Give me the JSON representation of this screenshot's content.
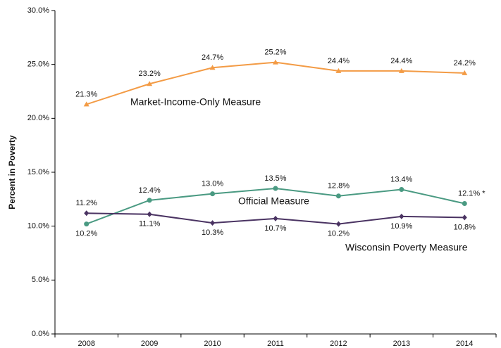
{
  "chart_data": {
    "type": "line",
    "y_label": "Percent in Poverty",
    "categories": [
      "2008",
      "2009",
      "2010",
      "2011",
      "2012",
      "2013",
      "2014"
    ],
    "series": [
      {
        "name": "Market-Income-Only Measure",
        "color": "#f39b45",
        "marker": "triangle",
        "values": [
          21.3,
          23.2,
          24.7,
          25.2,
          24.4,
          24.4,
          24.2
        ],
        "value_labels": [
          "21.3%",
          "23.2%",
          "24.7%",
          "25.2%",
          "24.4%",
          "24.4%",
          "24.2%"
        ]
      },
      {
        "name": "Official Measure",
        "color": "#4a9a82",
        "marker": "circle",
        "values": [
          10.2,
          12.4,
          13.0,
          13.5,
          12.8,
          13.4,
          12.1
        ],
        "value_labels": [
          "10.2%",
          "12.4%",
          "13.0%",
          "13.5%",
          "12.8%",
          "13.4%",
          "12.1% *"
        ]
      },
      {
        "name": "Wisconsin Poverty Measure",
        "color": "#4a3362",
        "marker": "diamond",
        "values": [
          11.2,
          11.1,
          10.3,
          10.7,
          10.2,
          10.9,
          10.8
        ],
        "value_labels": [
          "11.2%",
          "11.1%",
          "10.3%",
          "10.7%",
          "10.2%",
          "10.9%",
          "10.8%"
        ]
      }
    ],
    "ylim": [
      0,
      30
    ],
    "yticks": [
      {
        "value": 0,
        "label": "0.0%"
      },
      {
        "value": 5,
        "label": "5.0%"
      },
      {
        "value": 10,
        "label": "10.0%"
      },
      {
        "value": 15,
        "label": "15.0%"
      },
      {
        "value": 20,
        "label": "20.0%"
      },
      {
        "value": 25,
        "label": "25.0%"
      },
      {
        "value": 30,
        "label": "30.0%"
      }
    ],
    "grid": false
  }
}
